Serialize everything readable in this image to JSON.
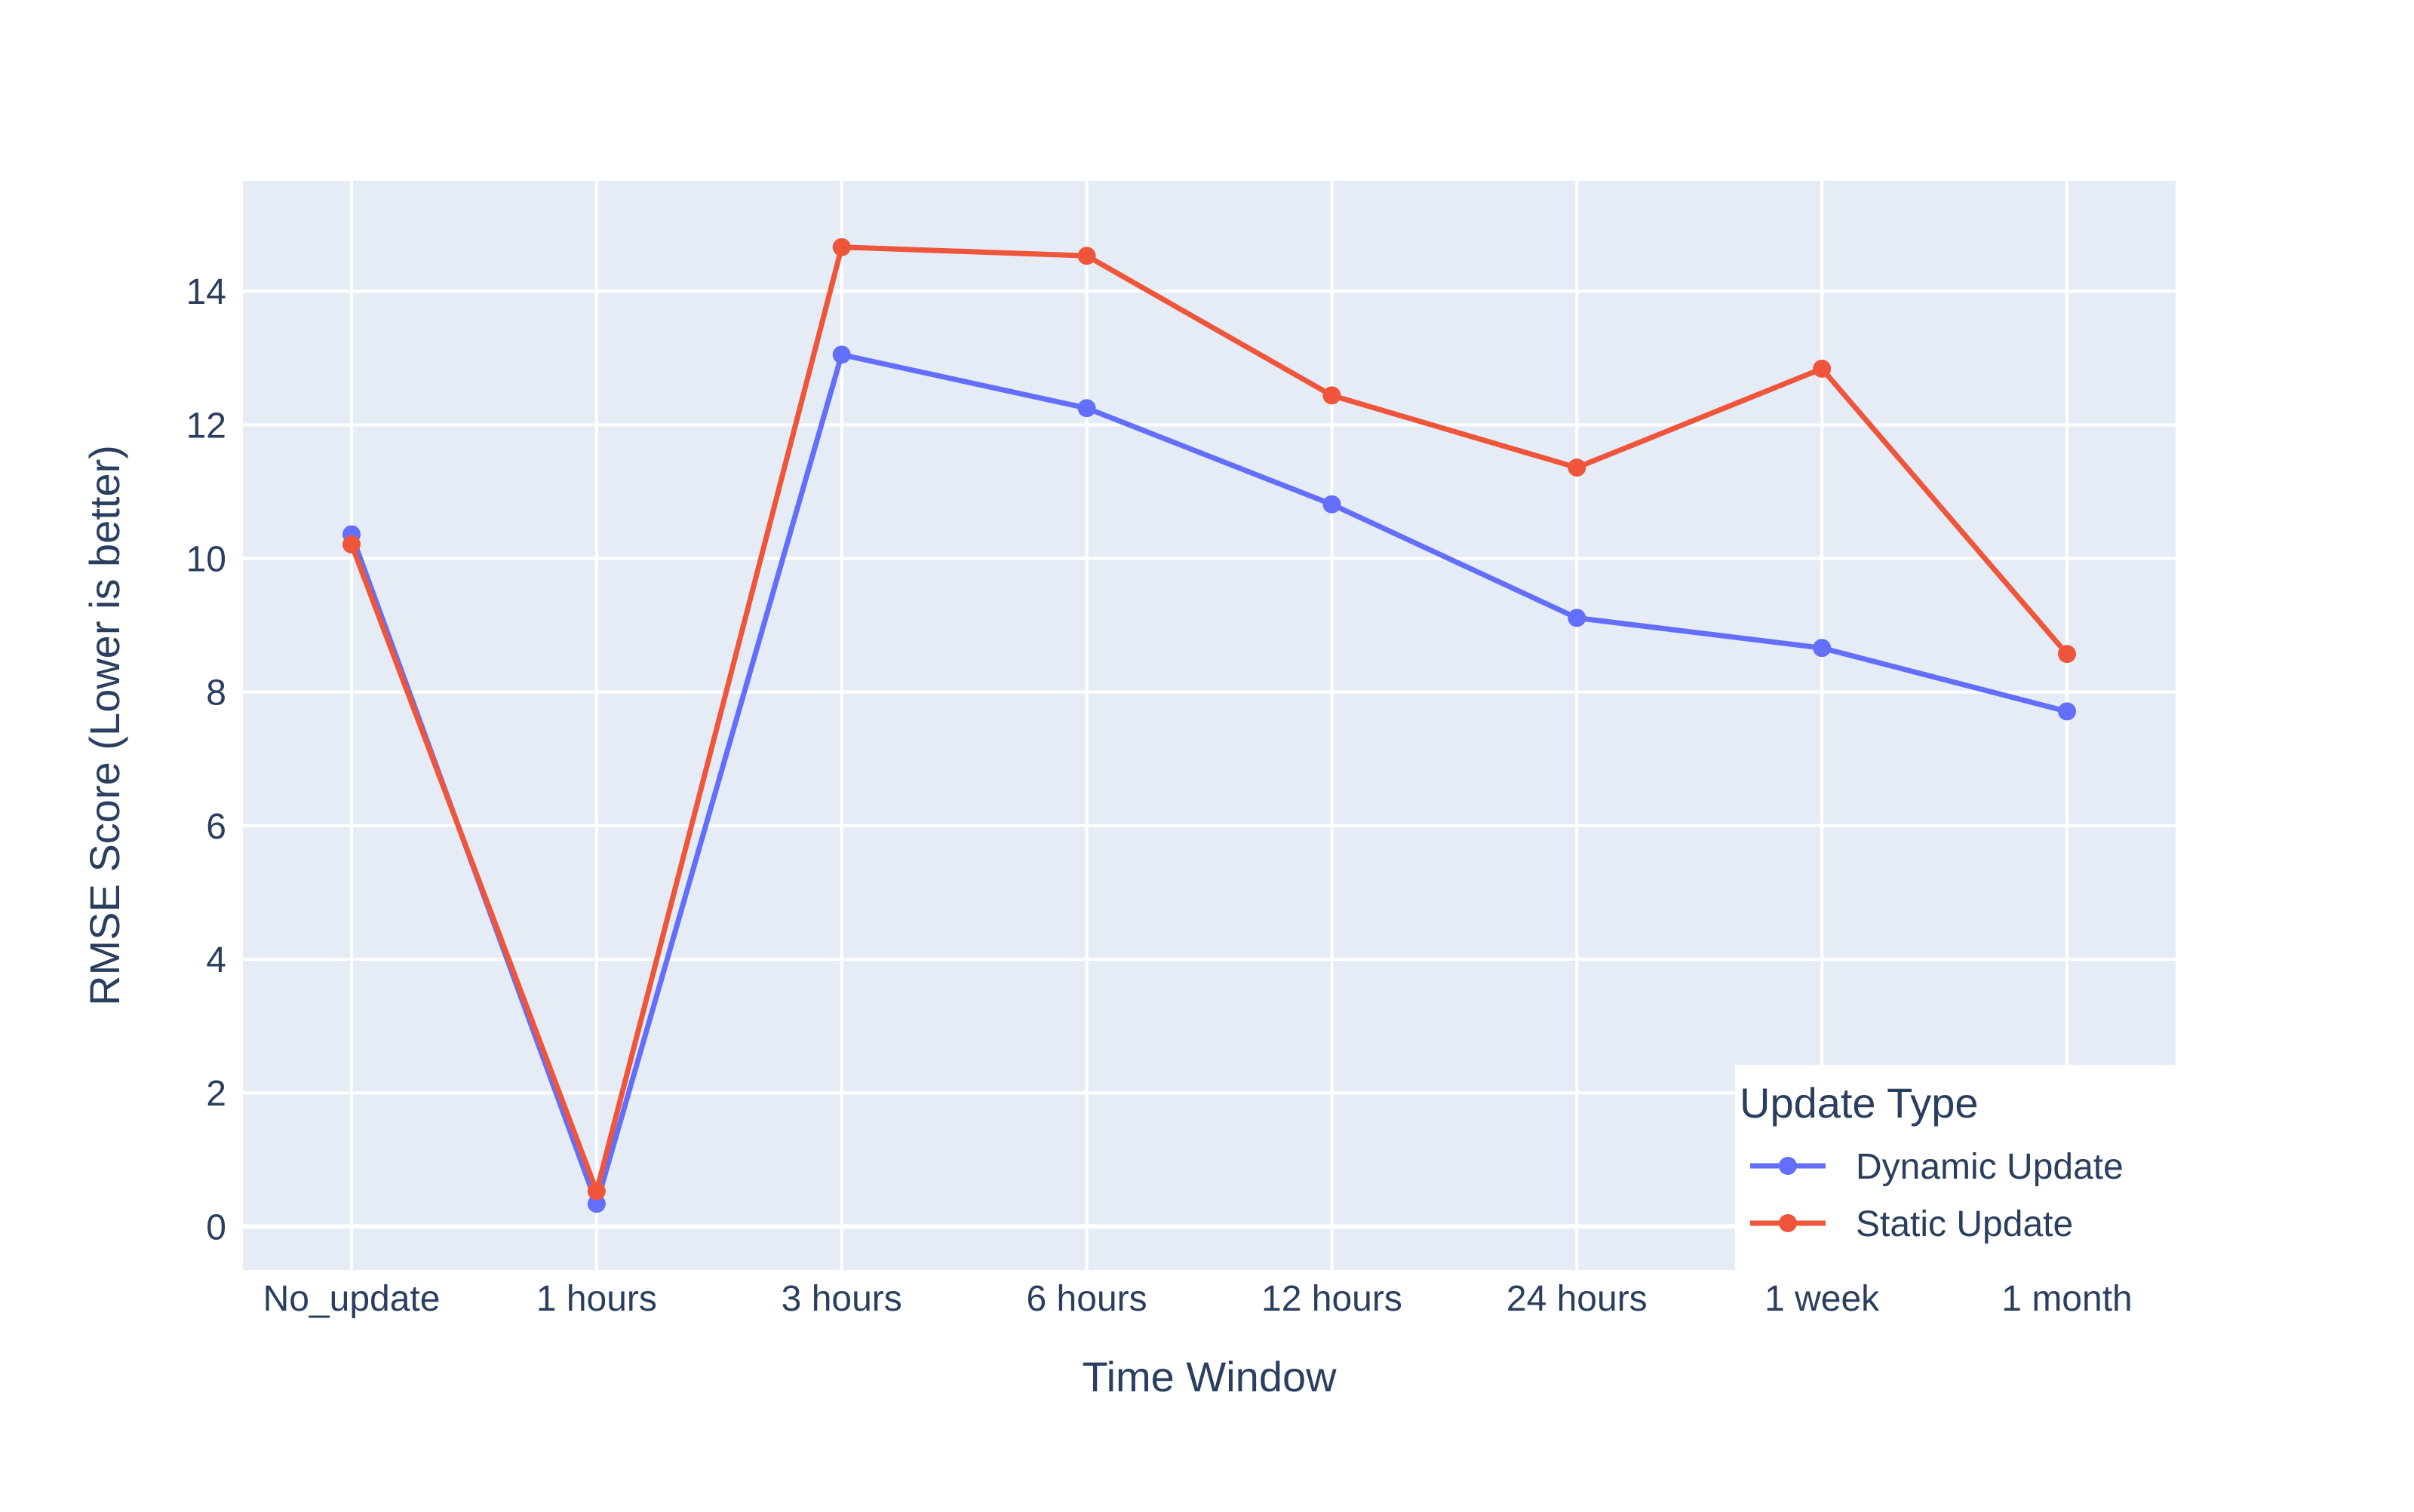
{
  "chart_data": {
    "type": "line",
    "title": "",
    "xlabel": "Time Window",
    "ylabel": "RMSE Score (Lower is better)",
    "categories": [
      "No_update",
      "1 hours",
      "3 hours",
      "6 hours",
      "12 hours",
      "24 hours",
      "1 week",
      "1 month"
    ],
    "yticks": [
      0,
      2,
      4,
      6,
      8,
      10,
      12,
      14
    ],
    "ylim": [
      -0.65,
      15.65
    ],
    "grid": true,
    "legend_position": "bottom-right",
    "legend_title": "Update Type",
    "series": [
      {
        "name": "Dynamic Update",
        "color": "#636efa",
        "values": [
          10.36,
          0.34,
          13.05,
          12.25,
          10.81,
          9.11,
          8.66,
          7.71
        ]
      },
      {
        "name": "Static Update",
        "color": "#ef553b",
        "values": [
          10.21,
          0.53,
          14.66,
          14.53,
          12.44,
          11.36,
          12.84,
          8.57
        ]
      }
    ]
  },
  "colors": {
    "plot_background": "#e5ecf6",
    "grid": "#ffffff",
    "text": "#2a3f5f"
  }
}
